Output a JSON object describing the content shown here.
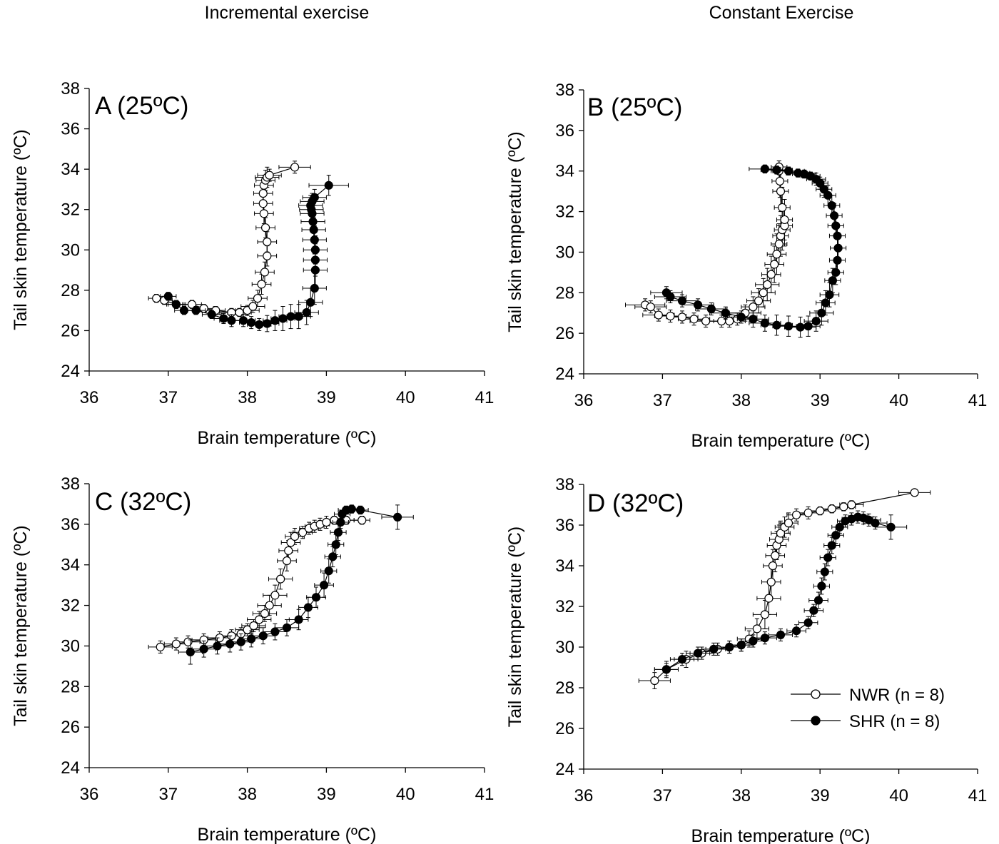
{
  "column_titles": {
    "left": "Incremental exercise",
    "right": "Constant Exercise"
  },
  "legend": {
    "nwr_label": "NWR (n = 8)",
    "shr_label": "SHR (n = 8)",
    "placement": "bottom-right of panel D"
  },
  "colors": {
    "nwr_fill": "#ffffff",
    "shr_fill": "#000000",
    "line": "#000000"
  },
  "chart_data": [
    {
      "type": "scatter",
      "panel_label": "A (25ºC)",
      "xlabel": "Brain temperature (ºC)",
      "ylabel": "Tail skin temperature (ºC)",
      "xlim": [
        36,
        41
      ],
      "ylim": [
        24,
        38
      ],
      "xticks": [
        36,
        37,
        38,
        39,
        40,
        41
      ],
      "yticks": [
        24,
        26,
        28,
        30,
        32,
        34,
        36,
        38
      ],
      "grid": false,
      "series": [
        {
          "name": "NWR (n = 8)",
          "x": [
            36.85,
            36.95,
            37.1,
            37.3,
            37.45,
            37.6,
            37.8,
            37.9,
            38.0,
            38.07,
            38.13,
            38.18,
            38.22,
            38.25,
            38.25,
            38.23,
            38.21,
            38.2,
            38.2,
            38.21,
            38.23,
            38.25,
            38.28,
            38.6
          ],
          "y": [
            27.6,
            27.5,
            27.3,
            27.3,
            27.1,
            27.0,
            26.9,
            26.9,
            27.0,
            27.2,
            27.6,
            28.3,
            28.9,
            29.7,
            30.4,
            31.1,
            31.8,
            32.3,
            32.8,
            33.2,
            33.45,
            33.6,
            33.7,
            34.1
          ],
          "xerr": [
            0.1,
            0.1,
            0.12,
            0.12,
            0.12,
            0.12,
            0.15,
            0.15,
            0.15,
            0.15,
            0.12,
            0.12,
            0.12,
            0.12,
            0.12,
            0.12,
            0.12,
            0.12,
            0.12,
            0.12,
            0.12,
            0.15,
            0.15,
            0.2
          ],
          "yerr": [
            0.2,
            0.2,
            0.2,
            0.2,
            0.2,
            0.2,
            0.2,
            0.2,
            0.25,
            0.3,
            0.4,
            0.5,
            0.5,
            0.5,
            0.5,
            0.5,
            0.5,
            0.5,
            0.5,
            0.5,
            0.5,
            0.5,
            0.3,
            0.3
          ]
        },
        {
          "name": "SHR (n = 8)",
          "x": [
            37.0,
            37.1,
            37.2,
            37.35,
            37.55,
            37.7,
            37.8,
            37.95,
            38.05,
            38.15,
            38.25,
            38.35,
            38.45,
            38.55,
            38.65,
            38.75,
            38.8,
            38.85,
            38.86,
            38.86,
            38.86,
            38.85,
            38.84,
            38.83,
            38.82,
            38.81,
            38.8,
            38.82,
            38.85,
            39.03
          ],
          "y": [
            27.7,
            27.3,
            27.0,
            27.0,
            26.8,
            26.6,
            26.5,
            26.5,
            26.4,
            26.3,
            26.35,
            26.5,
            26.6,
            26.7,
            26.7,
            26.9,
            27.4,
            28.1,
            29.0,
            29.5,
            30.0,
            30.5,
            31.0,
            31.4,
            31.8,
            32.0,
            32.2,
            32.4,
            32.6,
            33.2
          ],
          "xerr": [
            0.1,
            0.1,
            0.12,
            0.12,
            0.12,
            0.12,
            0.15,
            0.15,
            0.15,
            0.15,
            0.15,
            0.15,
            0.15,
            0.15,
            0.15,
            0.15,
            0.15,
            0.15,
            0.15,
            0.15,
            0.15,
            0.15,
            0.15,
            0.15,
            0.15,
            0.15,
            0.15,
            0.15,
            0.15,
            0.25
          ],
          "yerr": [
            0.2,
            0.2,
            0.2,
            0.2,
            0.2,
            0.25,
            0.3,
            0.3,
            0.3,
            0.3,
            0.4,
            0.5,
            0.6,
            0.6,
            0.6,
            0.6,
            0.7,
            0.8,
            0.8,
            0.8,
            0.7,
            0.7,
            0.6,
            0.5,
            0.5,
            0.5,
            0.5,
            0.4,
            0.4,
            0.5
          ]
        }
      ]
    },
    {
      "type": "scatter",
      "panel_label": "B (25ºC)",
      "xlabel": "Brain temperature (ºC)",
      "ylabel": "Tail skin temperature (ºC)",
      "xlim": [
        36,
        41
      ],
      "ylim": [
        24,
        38
      ],
      "xticks": [
        36,
        37,
        38,
        39,
        40,
        41
      ],
      "yticks": [
        24,
        26,
        28,
        30,
        32,
        34,
        36,
        38
      ],
      "grid": false,
      "series": [
        {
          "name": "NWR (n = 8)",
          "x": [
            36.78,
            36.85,
            36.95,
            37.1,
            37.25,
            37.4,
            37.55,
            37.75,
            37.85,
            37.95,
            38.05,
            38.15,
            38.22,
            38.28,
            38.33,
            38.38,
            38.42,
            38.45,
            38.48,
            38.5,
            38.52,
            38.55,
            38.55,
            38.52,
            38.5,
            38.49,
            38.48,
            38.48
          ],
          "y": [
            27.4,
            27.3,
            26.9,
            26.85,
            26.8,
            26.7,
            26.6,
            26.6,
            26.6,
            26.7,
            27.0,
            27.3,
            27.6,
            28.0,
            28.4,
            28.9,
            29.4,
            29.9,
            30.4,
            30.8,
            31.1,
            31.3,
            31.6,
            32.2,
            33.0,
            33.5,
            34.0,
            34.2
          ],
          "xerr": [
            0.25,
            0.2,
            0.2,
            0.2,
            0.2,
            0.2,
            0.2,
            0.2,
            0.2,
            0.2,
            0.2,
            0.15,
            0.15,
            0.15,
            0.15,
            0.12,
            0.12,
            0.12,
            0.1,
            0.1,
            0.1,
            0.1,
            0.1,
            0.1,
            0.1,
            0.1,
            0.1,
            0.1
          ],
          "yerr": [
            0.3,
            0.3,
            0.3,
            0.3,
            0.3,
            0.3,
            0.3,
            0.3,
            0.3,
            0.3,
            0.4,
            0.5,
            0.6,
            0.7,
            0.8,
            0.9,
            0.9,
            1.0,
            1.0,
            1.0,
            1.0,
            1.0,
            1.0,
            1.0,
            1.0,
            0.8,
            0.5,
            0.3
          ]
        },
        {
          "name": "SHR (n = 8)",
          "x": [
            37.05,
            37.1,
            37.25,
            37.45,
            37.62,
            37.8,
            38.0,
            38.15,
            38.3,
            38.45,
            38.6,
            38.75,
            38.85,
            38.95,
            39.02,
            39.07,
            39.12,
            39.16,
            39.2,
            39.22,
            39.23,
            39.22,
            39.2,
            39.18,
            39.15,
            39.1,
            39.05,
            39.0,
            38.95,
            38.88,
            38.8,
            38.72,
            38.6,
            38.45,
            38.3
          ],
          "y": [
            28.0,
            27.8,
            27.6,
            27.4,
            27.2,
            27.0,
            26.8,
            26.7,
            26.5,
            26.4,
            26.35,
            26.3,
            26.35,
            26.6,
            27.0,
            27.5,
            27.9,
            28.6,
            29.0,
            29.6,
            30.2,
            30.8,
            31.3,
            31.8,
            32.3,
            32.8,
            33.1,
            33.4,
            33.6,
            33.75,
            33.85,
            33.9,
            34.0,
            34.05,
            34.1
          ],
          "xerr": [
            0.2,
            0.2,
            0.2,
            0.2,
            0.2,
            0.2,
            0.2,
            0.2,
            0.2,
            0.2,
            0.2,
            0.2,
            0.15,
            0.15,
            0.15,
            0.12,
            0.12,
            0.1,
            0.1,
            0.1,
            0.1,
            0.1,
            0.1,
            0.1,
            0.1,
            0.1,
            0.1,
            0.1,
            0.12,
            0.12,
            0.15,
            0.15,
            0.2,
            0.2,
            0.2
          ],
          "yerr": [
            0.3,
            0.3,
            0.3,
            0.3,
            0.3,
            0.3,
            0.3,
            0.4,
            0.4,
            0.5,
            0.5,
            0.5,
            0.5,
            0.5,
            0.6,
            0.6,
            0.6,
            0.6,
            0.6,
            0.6,
            0.6,
            0.6,
            0.6,
            0.6,
            0.5,
            0.5,
            0.4,
            0.3,
            0.3,
            0.2,
            0.2,
            0.2,
            0.2,
            0.2,
            0.2
          ]
        }
      ]
    },
    {
      "type": "scatter",
      "panel_label": "C (32ºC)",
      "xlabel": "Brain temperature (ºC)",
      "ylabel": "Tail skin temperature (ºC)",
      "xlim": [
        36,
        41
      ],
      "ylim": [
        24,
        38
      ],
      "xticks": [
        36,
        37,
        38,
        39,
        40,
        41
      ],
      "yticks": [
        24,
        26,
        28,
        30,
        32,
        34,
        36,
        38
      ],
      "grid": false,
      "series": [
        {
          "name": "NWR (n = 8)",
          "x": [
            36.9,
            37.1,
            37.25,
            37.45,
            37.65,
            37.8,
            37.92,
            38.0,
            38.08,
            38.15,
            38.22,
            38.28,
            38.35,
            38.42,
            38.5,
            38.52,
            38.55,
            38.6,
            38.7,
            38.78,
            38.85,
            38.92,
            39.0,
            39.1,
            39.25,
            39.45
          ],
          "y": [
            29.95,
            30.1,
            30.2,
            30.3,
            30.4,
            30.5,
            30.6,
            30.8,
            31.0,
            31.3,
            31.6,
            32.0,
            32.5,
            33.3,
            34.2,
            34.7,
            35.1,
            35.4,
            35.6,
            35.8,
            35.9,
            36.0,
            36.1,
            36.2,
            36.2,
            36.2
          ],
          "xerr": [
            0.15,
            0.15,
            0.15,
            0.15,
            0.15,
            0.15,
            0.15,
            0.15,
            0.15,
            0.15,
            0.15,
            0.15,
            0.15,
            0.15,
            0.12,
            0.12,
            0.12,
            0.12,
            0.12,
            0.12,
            0.12,
            0.12,
            0.1,
            0.1,
            0.1,
            0.1
          ],
          "yerr": [
            0.3,
            0.3,
            0.3,
            0.3,
            0.3,
            0.3,
            0.3,
            0.3,
            0.3,
            0.4,
            0.4,
            0.5,
            0.5,
            0.5,
            0.5,
            0.5,
            0.5,
            0.4,
            0.3,
            0.3,
            0.3,
            0.3,
            0.3,
            0.2,
            0.2,
            0.2
          ]
        },
        {
          "name": "SHR (n = 8)",
          "x": [
            37.28,
            37.45,
            37.62,
            37.78,
            37.92,
            38.05,
            38.2,
            38.35,
            38.5,
            38.65,
            38.77,
            38.87,
            38.97,
            39.03,
            39.08,
            39.12,
            39.15,
            39.18,
            39.2,
            39.25,
            39.32,
            39.43,
            39.9
          ],
          "y": [
            29.7,
            29.85,
            30.0,
            30.1,
            30.2,
            30.35,
            30.5,
            30.7,
            30.9,
            31.3,
            31.9,
            32.4,
            33.0,
            33.7,
            34.4,
            35.0,
            35.6,
            36.1,
            36.5,
            36.7,
            36.75,
            36.7,
            36.35
          ],
          "xerr": [
            0.15,
            0.15,
            0.15,
            0.15,
            0.15,
            0.15,
            0.15,
            0.15,
            0.15,
            0.12,
            0.12,
            0.12,
            0.12,
            0.1,
            0.1,
            0.1,
            0.1,
            0.1,
            0.1,
            0.1,
            0.1,
            0.1,
            0.2
          ],
          "yerr": [
            0.6,
            0.4,
            0.4,
            0.4,
            0.4,
            0.4,
            0.4,
            0.4,
            0.4,
            0.5,
            0.5,
            0.5,
            0.6,
            0.6,
            0.5,
            0.5,
            0.4,
            0.3,
            0.2,
            0.2,
            0.2,
            0.2,
            0.6
          ]
        }
      ]
    },
    {
      "type": "scatter",
      "panel_label": "D (32ºC)",
      "xlabel": "Brain temperature (ºC)",
      "ylabel": "Tail skin temperature (ºC)",
      "xlim": [
        36,
        41
      ],
      "ylim": [
        24,
        38
      ],
      "xticks": [
        36,
        37,
        38,
        39,
        40,
        41
      ],
      "yticks": [
        24,
        26,
        28,
        30,
        32,
        34,
        36,
        38
      ],
      "grid": false,
      "series": [
        {
          "name": "NWR (n = 8)",
          "x": [
            36.9,
            37.05,
            37.3,
            37.5,
            37.7,
            37.85,
            38.0,
            38.1,
            38.2,
            38.3,
            38.35,
            38.38,
            38.4,
            38.43,
            38.45,
            38.48,
            38.5,
            38.55,
            38.6,
            38.7,
            38.85,
            39.0,
            39.15,
            39.3,
            39.4,
            40.2
          ],
          "y": [
            28.35,
            28.9,
            29.4,
            29.7,
            29.9,
            30.0,
            30.1,
            30.4,
            30.9,
            31.6,
            32.4,
            33.2,
            34.0,
            34.5,
            35.0,
            35.3,
            35.6,
            35.9,
            36.1,
            36.5,
            36.6,
            36.7,
            36.8,
            36.9,
            37.0,
            37.6
          ],
          "xerr": [
            0.2,
            0.15,
            0.15,
            0.15,
            0.15,
            0.15,
            0.15,
            0.15,
            0.15,
            0.15,
            0.15,
            0.12,
            0.12,
            0.12,
            0.12,
            0.12,
            0.12,
            0.12,
            0.12,
            0.12,
            0.15,
            0.15,
            0.15,
            0.15,
            0.15,
            0.2
          ],
          "yerr": [
            0.4,
            0.4,
            0.4,
            0.3,
            0.3,
            0.3,
            0.3,
            0.4,
            0.5,
            0.7,
            0.8,
            0.8,
            0.8,
            0.8,
            0.7,
            0.7,
            0.6,
            0.5,
            0.5,
            0.3,
            0.3,
            0.2,
            0.2,
            0.2,
            0.2,
            0.1
          ]
        },
        {
          "name": "SHR (n = 8)",
          "x": [
            37.05,
            37.25,
            37.45,
            37.65,
            37.85,
            38.0,
            38.15,
            38.3,
            38.5,
            38.7,
            38.85,
            38.92,
            38.98,
            39.02,
            39.06,
            39.1,
            39.15,
            39.2,
            39.25,
            39.32,
            39.4,
            39.48,
            39.55,
            39.62,
            39.7,
            39.9
          ],
          "y": [
            28.9,
            29.4,
            29.7,
            29.9,
            30.0,
            30.1,
            30.3,
            30.45,
            30.6,
            30.8,
            31.2,
            31.8,
            32.3,
            33.0,
            33.7,
            34.4,
            35.0,
            35.5,
            35.9,
            36.2,
            36.3,
            36.4,
            36.35,
            36.25,
            36.1,
            35.9
          ],
          "xerr": [
            0.15,
            0.15,
            0.15,
            0.15,
            0.15,
            0.15,
            0.15,
            0.15,
            0.15,
            0.12,
            0.12,
            0.12,
            0.12,
            0.1,
            0.1,
            0.1,
            0.1,
            0.1,
            0.1,
            0.1,
            0.12,
            0.12,
            0.12,
            0.15,
            0.15,
            0.2
          ],
          "yerr": [
            0.3,
            0.3,
            0.3,
            0.3,
            0.3,
            0.3,
            0.3,
            0.3,
            0.3,
            0.3,
            0.3,
            0.3,
            0.4,
            0.4,
            0.4,
            0.4,
            0.4,
            0.4,
            0.3,
            0.3,
            0.3,
            0.3,
            0.3,
            0.3,
            0.3,
            0.6
          ]
        }
      ]
    }
  ]
}
